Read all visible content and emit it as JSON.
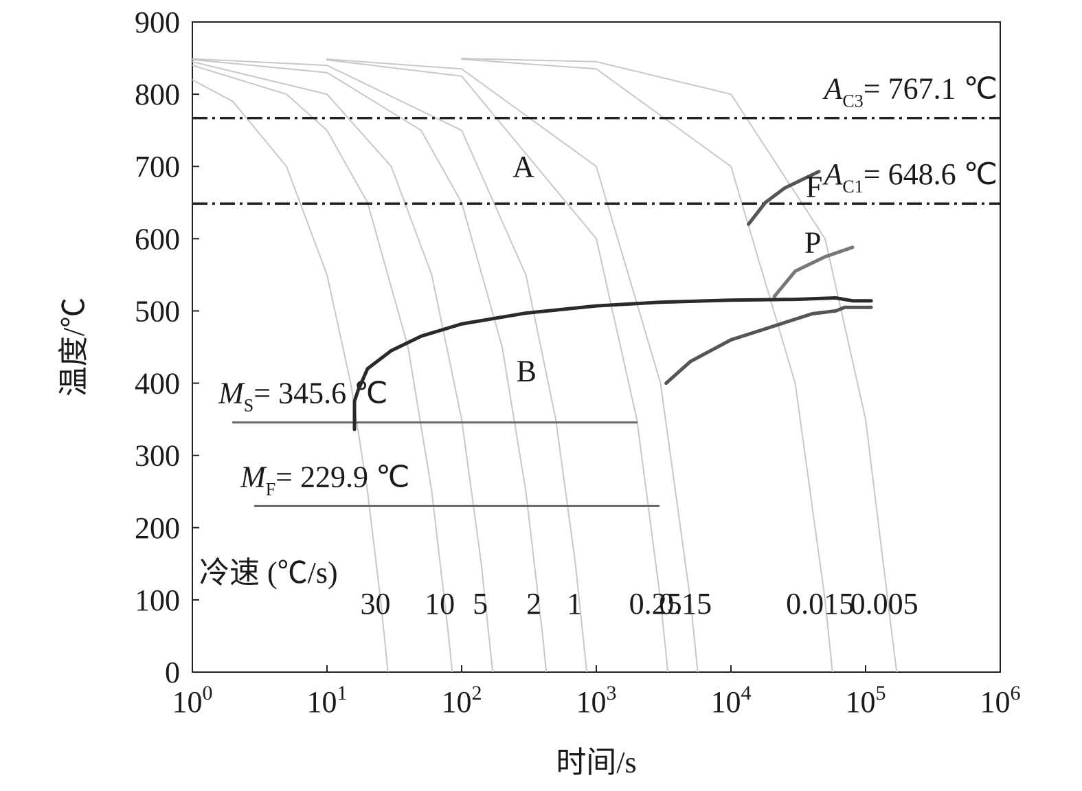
{
  "chart_data": {
    "type": "line",
    "xscale": "log",
    "xlim": [
      1,
      1000000
    ],
    "ylim": [
      0,
      900
    ],
    "xticks": [
      {
        "value": 1,
        "label": "10",
        "exponent": "0"
      },
      {
        "value": 10,
        "label": "10",
        "exponent": "1"
      },
      {
        "value": 100,
        "label": "10",
        "exponent": "2"
      },
      {
        "value": 1000,
        "label": "10",
        "exponent": "3"
      },
      {
        "value": 10000,
        "label": "10",
        "exponent": "4"
      },
      {
        "value": 100000,
        "label": "10",
        "exponent": "5"
      },
      {
        "value": 1000000,
        "label": "10",
        "exponent": "6"
      }
    ],
    "yticks": [
      0,
      100,
      200,
      300,
      400,
      500,
      600,
      700,
      800,
      900
    ],
    "xlabel": "时间/s",
    "ylabel": "温度/℃",
    "cooling_rate_label": "冷速 (℃/s)",
    "critical_lines": [
      {
        "symbol": "A",
        "subscript": "C3",
        "label": "= 767.1 ℃",
        "value": 767.1,
        "x": [
          1,
          1000000
        ],
        "style": "dash-dot",
        "color": "#222222"
      },
      {
        "symbol": "A",
        "subscript": "C1",
        "label": "= 648.6 ℃",
        "value": 648.6,
        "x": [
          1,
          1000000
        ],
        "style": "dash-dot",
        "color": "#222222"
      },
      {
        "symbol": "M",
        "subscript": "S",
        "label": "= 345.6 ℃",
        "value": 345.6,
        "x": [
          1.98,
          2020
        ],
        "style": "solid",
        "color": "#666666"
      },
      {
        "symbol": "M",
        "subscript": "F",
        "label": "= 229.9 ℃",
        "value": 229.9,
        "x": [
          2.88,
          2950
        ],
        "style": "solid",
        "color": "#666666"
      }
    ],
    "cooling_curves": [
      {
        "name": "30",
        "color": "#c8c8c8",
        "x": [
          1,
          2,
          5,
          10,
          15,
          20,
          25,
          28.3
        ],
        "values": [
          820,
          790,
          700,
          550,
          400,
          250,
          100,
          1
        ]
      },
      {
        "name": "10",
        "color": "#c8c8c8",
        "x": [
          1,
          5,
          10,
          20,
          40,
          60,
          80,
          85
        ],
        "values": [
          840,
          800,
          750,
          650,
          450,
          250,
          50,
          0
        ]
      },
      {
        "name": "5",
        "color": "#c8c8c8",
        "x": [
          1,
          10,
          30,
          60,
          100,
          140,
          170
        ],
        "values": [
          845,
          800,
          700,
          550,
          350,
          150,
          0
        ]
      },
      {
        "name": "2",
        "color": "#c8c8c8",
        "x": [
          1,
          10,
          50,
          100,
          200,
          300,
          400,
          425
        ],
        "values": [
          848,
          830,
          750,
          650,
          450,
          250,
          50,
          0
        ]
      },
      {
        "name": "1",
        "color": "#c8c8c8",
        "x": [
          1,
          10,
          100,
          300,
          500,
          700,
          850
        ],
        "values": [
          849,
          840,
          750,
          550,
          350,
          150,
          0
        ]
      },
      {
        "name": "0.25",
        "color": "#c8c8c8",
        "x": [
          10,
          100,
          1000,
          2000,
          3000,
          3400
        ],
        "values": [
          847.5,
          825,
          600,
          350,
          100,
          0
        ]
      },
      {
        "name": "0.15",
        "color": "#c8c8c8",
        "x": [
          10,
          100,
          1000,
          3000,
          5000,
          5667
        ],
        "values": [
          848.5,
          835,
          700,
          400,
          100,
          0
        ]
      },
      {
        "name": "0.015",
        "color": "#c8c8c8",
        "x": [
          100,
          1000,
          10000,
          30000,
          50000,
          56667
        ],
        "values": [
          848.5,
          835,
          700,
          400,
          100,
          0
        ]
      },
      {
        "name": "0.005",
        "color": "#c8c8c8",
        "x": [
          100,
          1000,
          10000,
          50000,
          100000,
          170000
        ],
        "values": [
          849.5,
          845,
          800,
          600,
          350,
          0
        ]
      }
    ],
    "transformation_curves": [
      {
        "color": "#555555",
        "x": [
          13500,
          18000,
          25000,
          45000
        ],
        "values": [
          620,
          650,
          670,
          693
        ]
      },
      {
        "color": "#777777",
        "x": [
          21000,
          30000,
          50000,
          80000
        ],
        "values": [
          520,
          555,
          575,
          588
        ]
      },
      {
        "color": "#2a2a2a",
        "x": [
          16,
          16,
          17,
          20,
          30,
          50,
          100,
          300,
          1000,
          3000,
          10000,
          30000,
          60000,
          80000,
          110000
        ],
        "values": [
          336,
          375,
          390,
          420,
          445,
          465,
          482,
          497,
          507,
          512,
          515,
          516,
          518,
          514,
          514
        ]
      },
      {
        "color": "#555555",
        "x": [
          3300,
          5000,
          10000,
          20000,
          40000,
          60000,
          70000,
          110000
        ],
        "values": [
          400,
          430,
          460,
          478,
          496,
          500,
          505,
          505
        ]
      }
    ],
    "annotations": [
      {
        "text": "A",
        "x": 288,
        "y": 700
      },
      {
        "text": "B",
        "x": 303,
        "y": 417
      },
      {
        "text": "F",
        "x": 41500,
        "y": 672
      },
      {
        "text": "P",
        "x": 40500,
        "y": 595
      }
    ]
  }
}
